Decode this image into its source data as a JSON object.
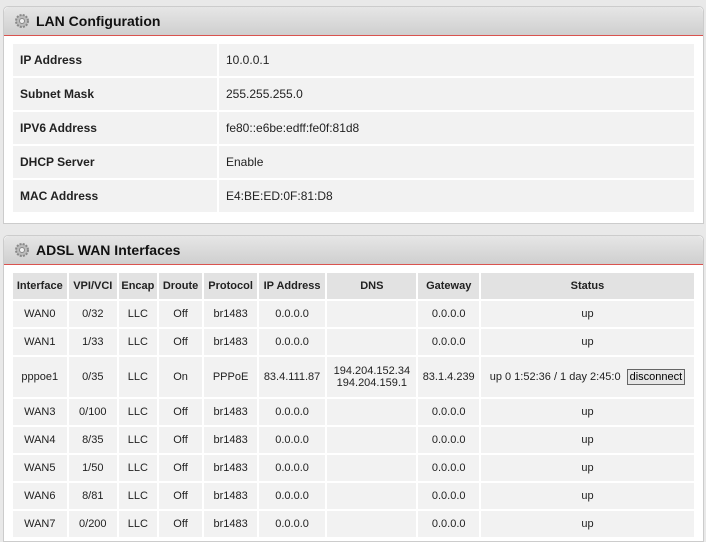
{
  "lan": {
    "title": "LAN Configuration",
    "icon": "gear-icon",
    "rows": [
      {
        "label": "IP Address",
        "value": "10.0.0.1"
      },
      {
        "label": "Subnet Mask",
        "value": "255.255.255.0"
      },
      {
        "label": "IPV6 Address",
        "value": "fe80::e6be:edff:fe0f:81d8"
      },
      {
        "label": "DHCP Server",
        "value": "Enable"
      },
      {
        "label": "MAC Address",
        "value": "E4:BE:ED:0F:81:D8"
      }
    ]
  },
  "wan": {
    "title": "ADSL WAN Interfaces",
    "icon": "gear-icon",
    "headers": [
      "Interface",
      "VPI/VCI",
      "Encap",
      "Droute",
      "Protocol",
      "IP Address",
      "DNS",
      "Gateway",
      "Status"
    ],
    "rows": [
      [
        "WAN0",
        "0/32",
        "LLC",
        "Off",
        "br1483",
        "0.0.0.0",
        "",
        "0.0.0.0",
        "up"
      ],
      [
        "WAN1",
        "1/33",
        "LLC",
        "Off",
        "br1483",
        "0.0.0.0",
        "",
        "0.0.0.0",
        "up"
      ],
      [
        "pppoe1",
        "0/35",
        "LLC",
        "On",
        "PPPoE",
        "83.4.111.87",
        "194.204.152.34",
        "83.1.4.239",
        "up 0 1:52:36 / 1 day 2:45:0"
      ],
      [
        "WAN3",
        "0/100",
        "LLC",
        "Off",
        "br1483",
        "0.0.0.0",
        "",
        "0.0.0.0",
        "up"
      ],
      [
        "WAN4",
        "8/35",
        "LLC",
        "Off",
        "br1483",
        "0.0.0.0",
        "",
        "0.0.0.0",
        "up"
      ],
      [
        "WAN5",
        "1/50",
        "LLC",
        "Off",
        "br1483",
        "0.0.0.0",
        "",
        "0.0.0.0",
        "up"
      ],
      [
        "WAN6",
        "8/81",
        "LLC",
        "Off",
        "br1483",
        "0.0.0.0",
        "",
        "0.0.0.0",
        "up"
      ],
      [
        "WAN7",
        "0/200",
        "LLC",
        "Off",
        "br1483",
        "0.0.0.0",
        "",
        "0.0.0.0",
        "up"
      ]
    ],
    "dns2": "194.204.159.1",
    "disconnect_label": "disconnect"
  }
}
